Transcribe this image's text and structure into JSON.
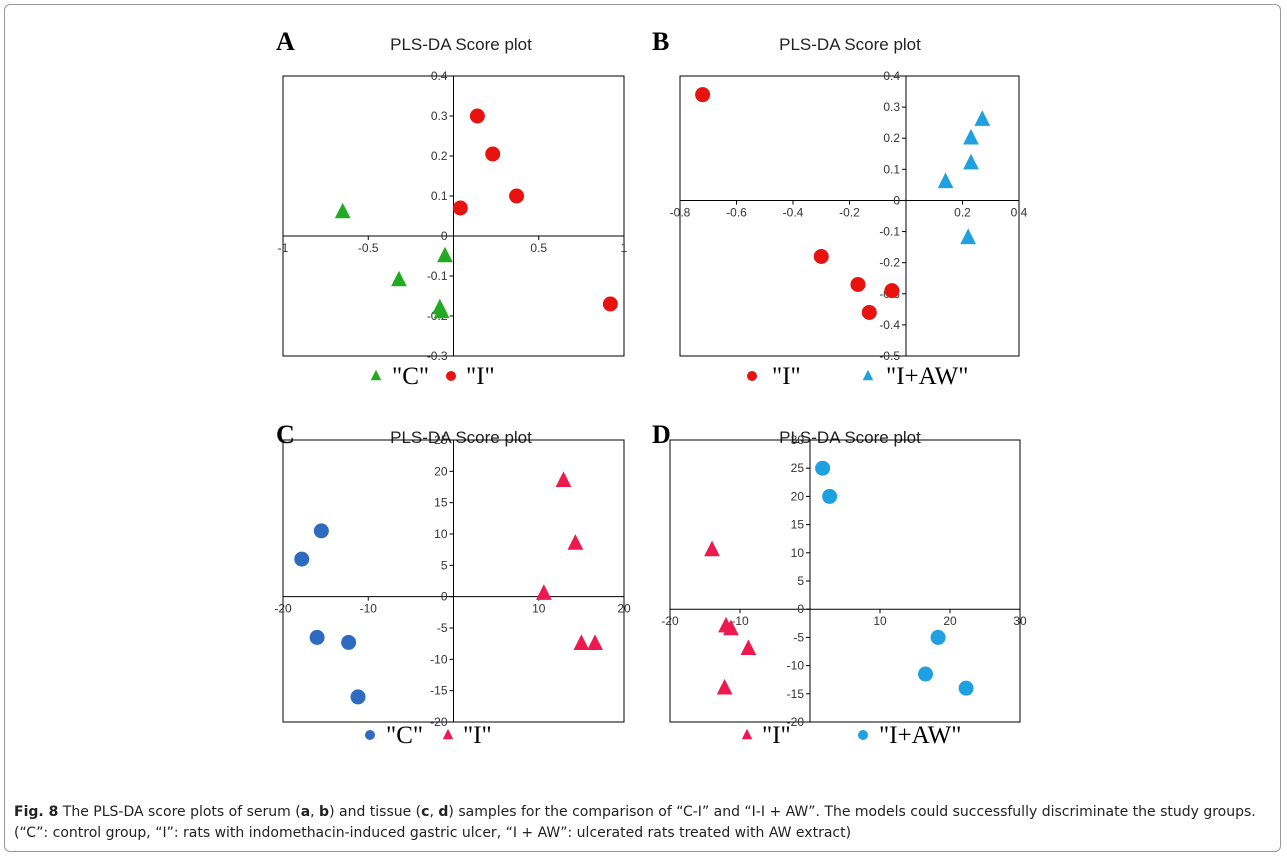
{
  "chart_data": [
    {
      "type": "scatter",
      "panel": "A",
      "title": "PLS-DA Score plot",
      "xlim": [
        -1,
        1
      ],
      "ylim": [
        -0.3,
        0.4
      ],
      "xticks": [
        {
          "v": -1,
          "t": "-1"
        },
        {
          "v": -0.5,
          "t": "-0.5"
        },
        {
          "v": 0,
          "t": "0"
        },
        {
          "v": 0.5,
          "t": "0.5"
        },
        {
          "v": 1,
          "t": "1"
        }
      ],
      "yticks": [
        {
          "v": 0.4,
          "t": "0.4"
        },
        {
          "v": 0.3,
          "t": "0.3"
        },
        {
          "v": 0.2,
          "t": "0.2"
        },
        {
          "v": 0.1,
          "t": "0.1"
        },
        {
          "v": 0,
          "t": "0"
        },
        {
          "v": -0.1,
          "t": "-0.1"
        },
        {
          "v": -0.2,
          "t": "-0.2"
        },
        {
          "v": -0.3,
          "t": "-0.3"
        }
      ],
      "series": [
        {
          "name": "\"C\"",
          "marker": "triangle",
          "color": "#22AA22",
          "points": [
            [
              -0.65,
              0.06
            ],
            [
              -0.32,
              -0.11
            ],
            [
              -0.05,
              -0.05
            ],
            [
              -0.08,
              -0.18
            ],
            [
              -0.07,
              -0.19
            ]
          ]
        },
        {
          "name": "\"I\"",
          "marker": "circle",
          "color": "#E8130F",
          "points": [
            [
              0.14,
              0.3
            ],
            [
              0.23,
              0.205
            ],
            [
              0.37,
              0.1
            ],
            [
              0.04,
              0.07
            ],
            [
              0.92,
              -0.17
            ]
          ]
        }
      ],
      "legend": "bottom"
    },
    {
      "type": "scatter",
      "panel": "B",
      "title": "PLS-DA Score plot",
      "xlim": [
        -0.8,
        0.4
      ],
      "ylim": [
        -0.5,
        0.4
      ],
      "xticks": [
        {
          "v": -0.8,
          "t": "-0.8"
        },
        {
          "v": -0.6,
          "t": "-0.6"
        },
        {
          "v": -0.4,
          "t": "-0.4"
        },
        {
          "v": -0.2,
          "t": "-0.2"
        },
        {
          "v": 0,
          "t": "0"
        },
        {
          "v": 0.2,
          "t": "0.2"
        },
        {
          "v": 0.4,
          "t": "0.4"
        }
      ],
      "yticks": [
        {
          "v": 0.4,
          "t": "0.4"
        },
        {
          "v": 0.3,
          "t": "0.3"
        },
        {
          "v": 0.2,
          "t": "0.2"
        },
        {
          "v": 0.1,
          "t": "0.1"
        },
        {
          "v": 0,
          "t": "0"
        },
        {
          "v": -0.1,
          "t": "-0.1"
        },
        {
          "v": -0.2,
          "t": "-0.2"
        },
        {
          "v": -0.3,
          "t": "-0.3"
        },
        {
          "v": -0.4,
          "t": "-0.4"
        },
        {
          "v": -0.5,
          "t": "-0.5"
        }
      ],
      "series": [
        {
          "name": "\"I\"",
          "marker": "circle",
          "color": "#E8130F",
          "points": [
            [
              -0.72,
              0.34
            ],
            [
              -0.3,
              -0.18
            ],
            [
              -0.17,
              -0.27
            ],
            [
              -0.13,
              -0.36
            ],
            [
              -0.05,
              -0.29
            ]
          ]
        },
        {
          "name": "\"I+AW\"",
          "marker": "triangle",
          "color": "#1FA0E0",
          "points": [
            [
              0.27,
              0.26
            ],
            [
              0.23,
              0.2
            ],
            [
              0.23,
              0.12
            ],
            [
              0.14,
              0.06
            ],
            [
              0.22,
              -0.12
            ]
          ]
        }
      ],
      "legend": "bottom"
    },
    {
      "type": "scatter",
      "panel": "C",
      "title": "PLS-DA Score plot",
      "xlim": [
        -20,
        20
      ],
      "ylim": [
        -20,
        25
      ],
      "xticks": [
        {
          "v": -20,
          "t": "-20"
        },
        {
          "v": -10,
          "t": "-10"
        },
        {
          "v": 0,
          "t": "0"
        },
        {
          "v": 10,
          "t": "10"
        },
        {
          "v": 20,
          "t": "20"
        }
      ],
      "yticks": [
        {
          "v": 25,
          "t": "25"
        },
        {
          "v": 20,
          "t": "20"
        },
        {
          "v": 15,
          "t": "15"
        },
        {
          "v": 10,
          "t": "10"
        },
        {
          "v": 5,
          "t": "5"
        },
        {
          "v": 0,
          "t": "0"
        },
        {
          "v": -5,
          "t": "-5"
        },
        {
          "v": -10,
          "t": "-10"
        },
        {
          "v": -15,
          "t": "-15"
        },
        {
          "v": -20,
          "t": "-20"
        }
      ],
      "series": [
        {
          "name": "\"C\"",
          "marker": "circle",
          "color": "#2E6BC0",
          "points": [
            [
              -15.5,
              10.5
            ],
            [
              -17.8,
              6
            ],
            [
              -16,
              -6.5
            ],
            [
              -12.3,
              -7.3
            ],
            [
              -11.2,
              -16
            ]
          ]
        },
        {
          "name": "\"I\"",
          "marker": "triangle",
          "color": "#EE1A4F",
          "points": [
            [
              12.9,
              18.5
            ],
            [
              14.3,
              8.5
            ],
            [
              10.6,
              0.5
            ],
            [
              15,
              -7.5
            ],
            [
              16.6,
              -7.5
            ]
          ]
        }
      ],
      "legend": "bottom"
    },
    {
      "type": "scatter",
      "panel": "D",
      "title": "PLS-DA Score plot",
      "xlim": [
        -20,
        30
      ],
      "ylim": [
        -20,
        30
      ],
      "xticks": [
        {
          "v": -20,
          "t": "-20"
        },
        {
          "v": -10,
          "t": "-10"
        },
        {
          "v": 0,
          "t": "0"
        },
        {
          "v": 10,
          "t": "10"
        },
        {
          "v": 20,
          "t": "20"
        },
        {
          "v": 30,
          "t": "30"
        }
      ],
      "yticks": [
        {
          "v": 30,
          "t": "30"
        },
        {
          "v": 25,
          "t": "25"
        },
        {
          "v": 20,
          "t": "20"
        },
        {
          "v": 15,
          "t": "15"
        },
        {
          "v": 10,
          "t": "10"
        },
        {
          "v": 5,
          "t": "5"
        },
        {
          "v": 0,
          "t": "0"
        },
        {
          "v": -5,
          "t": "-5"
        },
        {
          "v": -10,
          "t": "-10"
        },
        {
          "v": -15,
          "t": "-15"
        },
        {
          "v": -20,
          "t": "-20"
        }
      ],
      "series": [
        {
          "name": "\"I\"",
          "marker": "triangle",
          "color": "#EE1A4F",
          "points": [
            [
              -14,
              10.5
            ],
            [
              -12,
              -3
            ],
            [
              -11.3,
              -3.5
            ],
            [
              -8.8,
              -7
            ],
            [
              -12.2,
              -14
            ]
          ]
        },
        {
          "name": "\"I+AW\"",
          "marker": "circle",
          "color": "#1FA0E0",
          "points": [
            [
              1.8,
              25
            ],
            [
              2.8,
              20
            ],
            [
              18.3,
              -5
            ],
            [
              16.5,
              -11.5
            ],
            [
              22.3,
              -14
            ]
          ]
        }
      ],
      "legend": "bottom"
    }
  ],
  "caption": {
    "label": "Fig. 8",
    "parts": [
      {
        "t": " The PLS-DA score plots of serum (",
        "b": false
      },
      {
        "t": "a",
        "b": true
      },
      {
        "t": ", ",
        "b": false
      },
      {
        "t": "b",
        "b": true
      },
      {
        "t": ") and tissue (",
        "b": false
      },
      {
        "t": "c",
        "b": true
      },
      {
        "t": ", ",
        "b": false
      },
      {
        "t": "d",
        "b": true
      },
      {
        "t": ") samples for the comparison of “C-I” and “I-I + AW”. The models could successfully discriminate the study groups. (“C”: control group, “I”: rats with indomethacin-induced gastric ulcer, “I + AW”: ulcerated rats treated with AW extract)",
        "b": false
      }
    ]
  }
}
